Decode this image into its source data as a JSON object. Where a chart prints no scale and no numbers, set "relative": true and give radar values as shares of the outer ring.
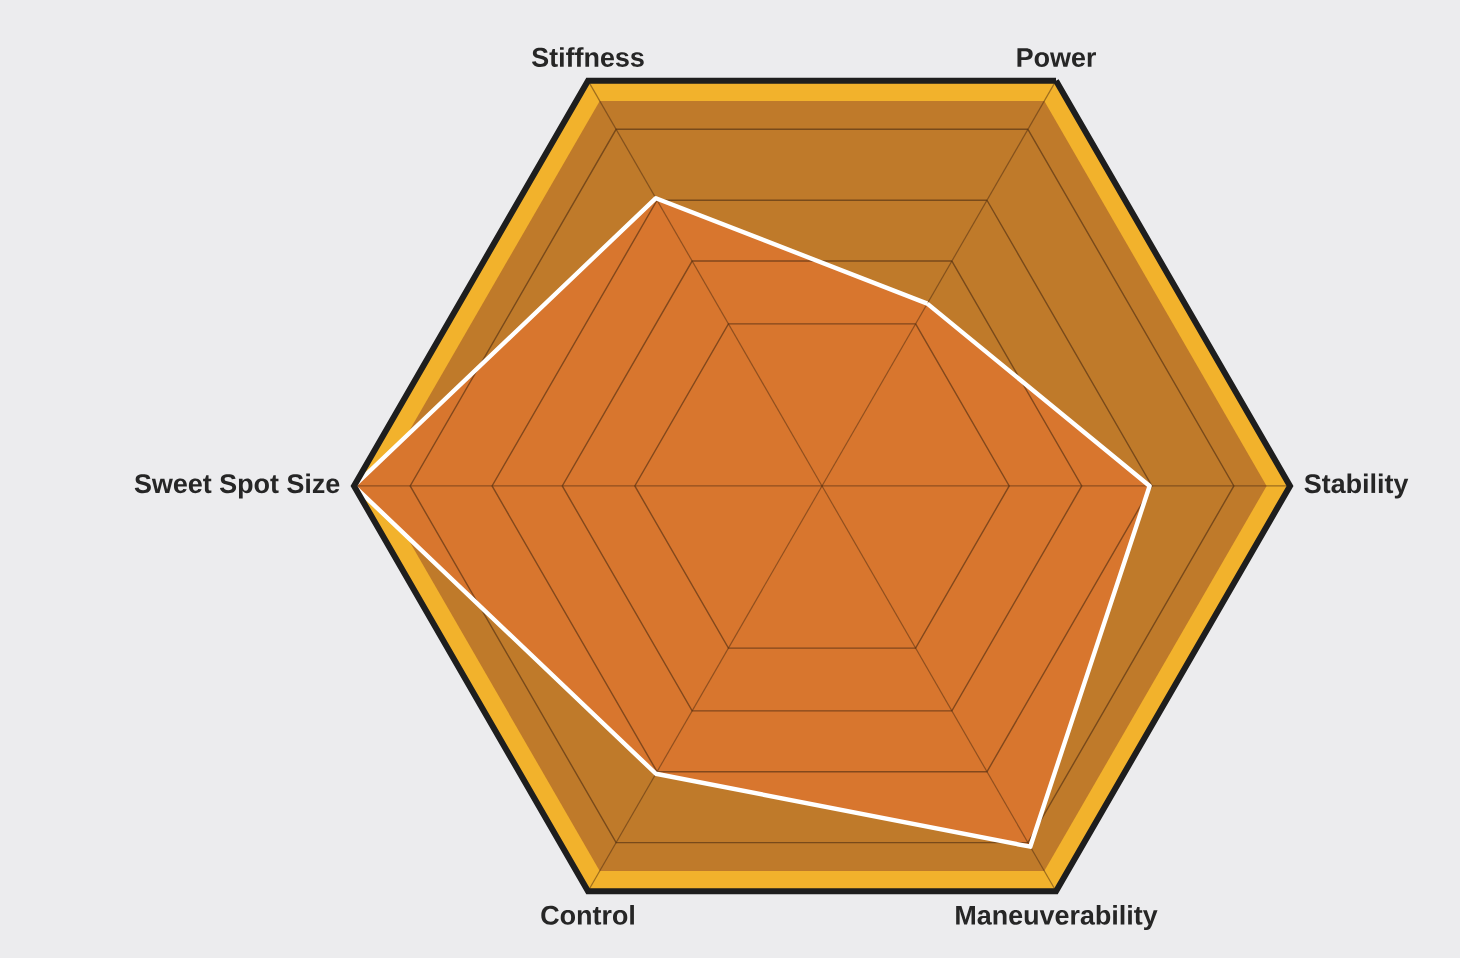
{
  "chart_data": {
    "type": "radar",
    "relative": true,
    "grid": true,
    "categories": [
      "Power",
      "Stability",
      "Maneuverability",
      "Control",
      "Sweet Spot Size",
      "Stiffness"
    ],
    "series": [
      {
        "color": "#ffffff",
        "values": [
          0.45,
          0.7,
          0.89,
          0.71,
          1.0,
          0.71
        ]
      }
    ]
  }
}
